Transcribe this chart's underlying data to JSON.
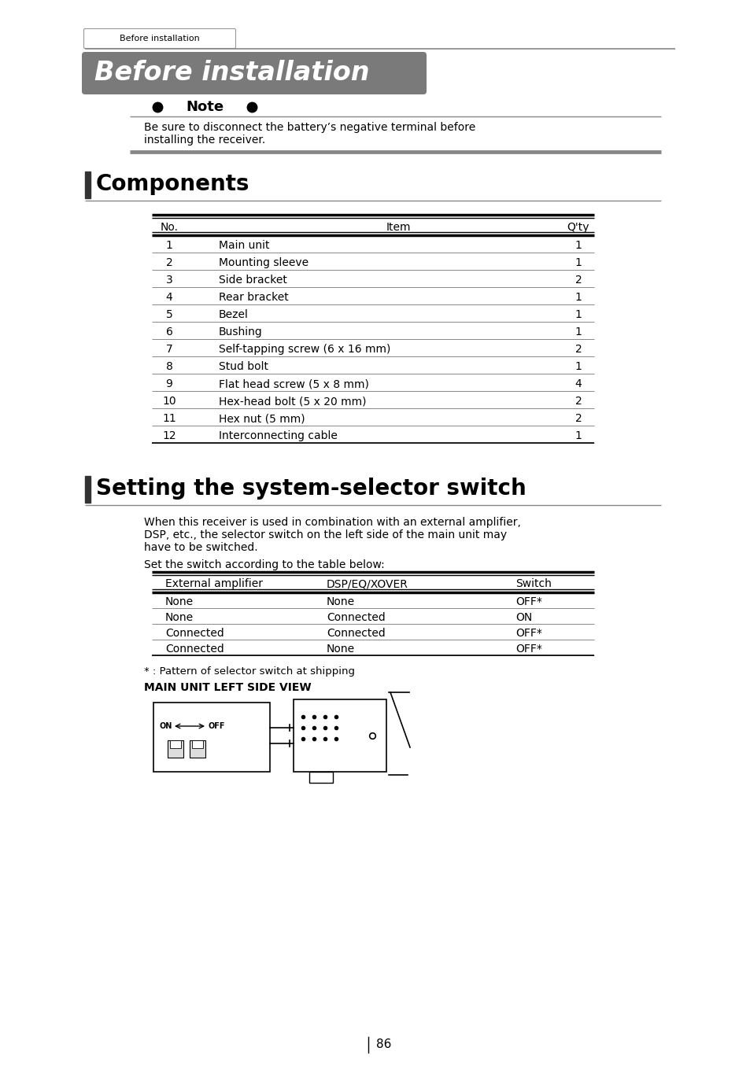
{
  "page_bg": "#ffffff",
  "tab_text": "Before installation",
  "main_title": "Before installation",
  "note_label": "Note",
  "note_text_line1": "Be sure to disconnect the battery’s negative terminal before",
  "note_text_line2": "installing the receiver.",
  "components_title": "Components",
  "components_table_header": [
    "No.",
    "Item",
    "Q'ty"
  ],
  "components_table_rows": [
    [
      "1",
      "Main unit",
      "1"
    ],
    [
      "2",
      "Mounting sleeve",
      "1"
    ],
    [
      "3",
      "Side bracket",
      "2"
    ],
    [
      "4",
      "Rear bracket",
      "1"
    ],
    [
      "5",
      "Bezel",
      "1"
    ],
    [
      "6",
      "Bushing",
      "1"
    ],
    [
      "7",
      "Self-tapping screw (6 x 16 mm)",
      "2"
    ],
    [
      "8",
      "Stud bolt",
      "1"
    ],
    [
      "9",
      "Flat head screw (5 x 8 mm)",
      "4"
    ],
    [
      "10",
      "Hex-head bolt (5 x 20 mm)",
      "2"
    ],
    [
      "11",
      "Hex nut (5 mm)",
      "2"
    ],
    [
      "12",
      "Interconnecting cable",
      "1"
    ]
  ],
  "selector_title": "Setting the system-selector switch",
  "selector_body_lines": [
    "When this receiver is used in combination with an external amplifier,",
    "DSP, etc., the selector switch on the left side of the main unit may",
    "have to be switched."
  ],
  "selector_body2": "Set the switch according to the table below:",
  "selector_table_header": [
    "External amplifier",
    "DSP/EQ/XOVER",
    "Switch"
  ],
  "selector_table_rows": [
    [
      "None",
      "None",
      "OFF*"
    ],
    [
      "None",
      "Connected",
      "ON"
    ],
    [
      "Connected",
      "Connected",
      "OFF*"
    ],
    [
      "Connected",
      "None",
      "OFF*"
    ]
  ],
  "footnote": "* : Pattern of selector switch at shipping",
  "diagram_label": "MAIN UNIT LEFT SIDE VIEW",
  "page_number": "86",
  "title_bg_color": "#7a7a7a",
  "title_text_color": "#ffffff",
  "section_bar_color": "#333333",
  "tab_bg": "#ffffff",
  "tab_border": "#999999",
  "line_dark": "#333333",
  "line_mid": "#888888",
  "line_light": "#aaaaaa"
}
